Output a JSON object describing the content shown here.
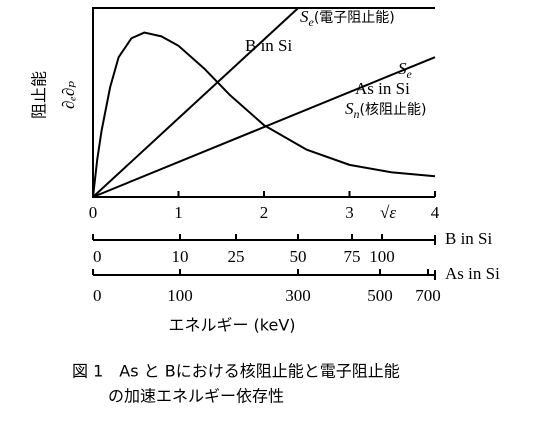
{
  "chart_data": {
    "type": "line",
    "y_label": "阻止能",
    "y_symbol": "∂ₑ∂ₚ",
    "x_label": "√ε",
    "xlim": [
      0,
      4
    ],
    "ylim": [
      0,
      1
    ],
    "xticks": [
      0,
      1,
      2,
      3,
      4
    ],
    "series": [
      {
        "name": "B in Si",
        "symbol": "S",
        "subscript": "e",
        "note": "(電子阻止能)",
        "color": "#000000",
        "x": [
          0,
          2.4
        ],
        "values": [
          0,
          1
        ]
      },
      {
        "name": "As in Si",
        "symbol": "S",
        "subscript": "e",
        "color": "#000000",
        "x": [
          0,
          4
        ],
        "values": [
          0,
          0.74
        ]
      },
      {
        "symbol": "S",
        "subscript": "n",
        "note": "(核阻止能)",
        "color": "#000000",
        "x": [
          0,
          0.05,
          0.1,
          0.2,
          0.3,
          0.45,
          0.6,
          0.8,
          1,
          1.3,
          1.6,
          2,
          2.5,
          3,
          3.5,
          4
        ],
        "values": [
          0,
          0.2,
          0.35,
          0.58,
          0.74,
          0.84,
          0.87,
          0.85,
          0.8,
          0.68,
          0.54,
          0.38,
          0.25,
          0.17,
          0.13,
          0.11
        ]
      }
    ],
    "energy_axes": [
      {
        "name": "B in Si",
        "ticks": [
          0,
          10,
          25,
          50,
          75,
          100
        ]
      },
      {
        "name": "As in Si",
        "ticks": [
          0,
          100,
          300,
          500,
          700
        ]
      }
    ],
    "energy_label": "エネルギー (keV)",
    "caption": [
      "図 1　As と Bにおける核阻止能と電子阻止能",
      "の加速エネルギー依存性"
    ]
  }
}
